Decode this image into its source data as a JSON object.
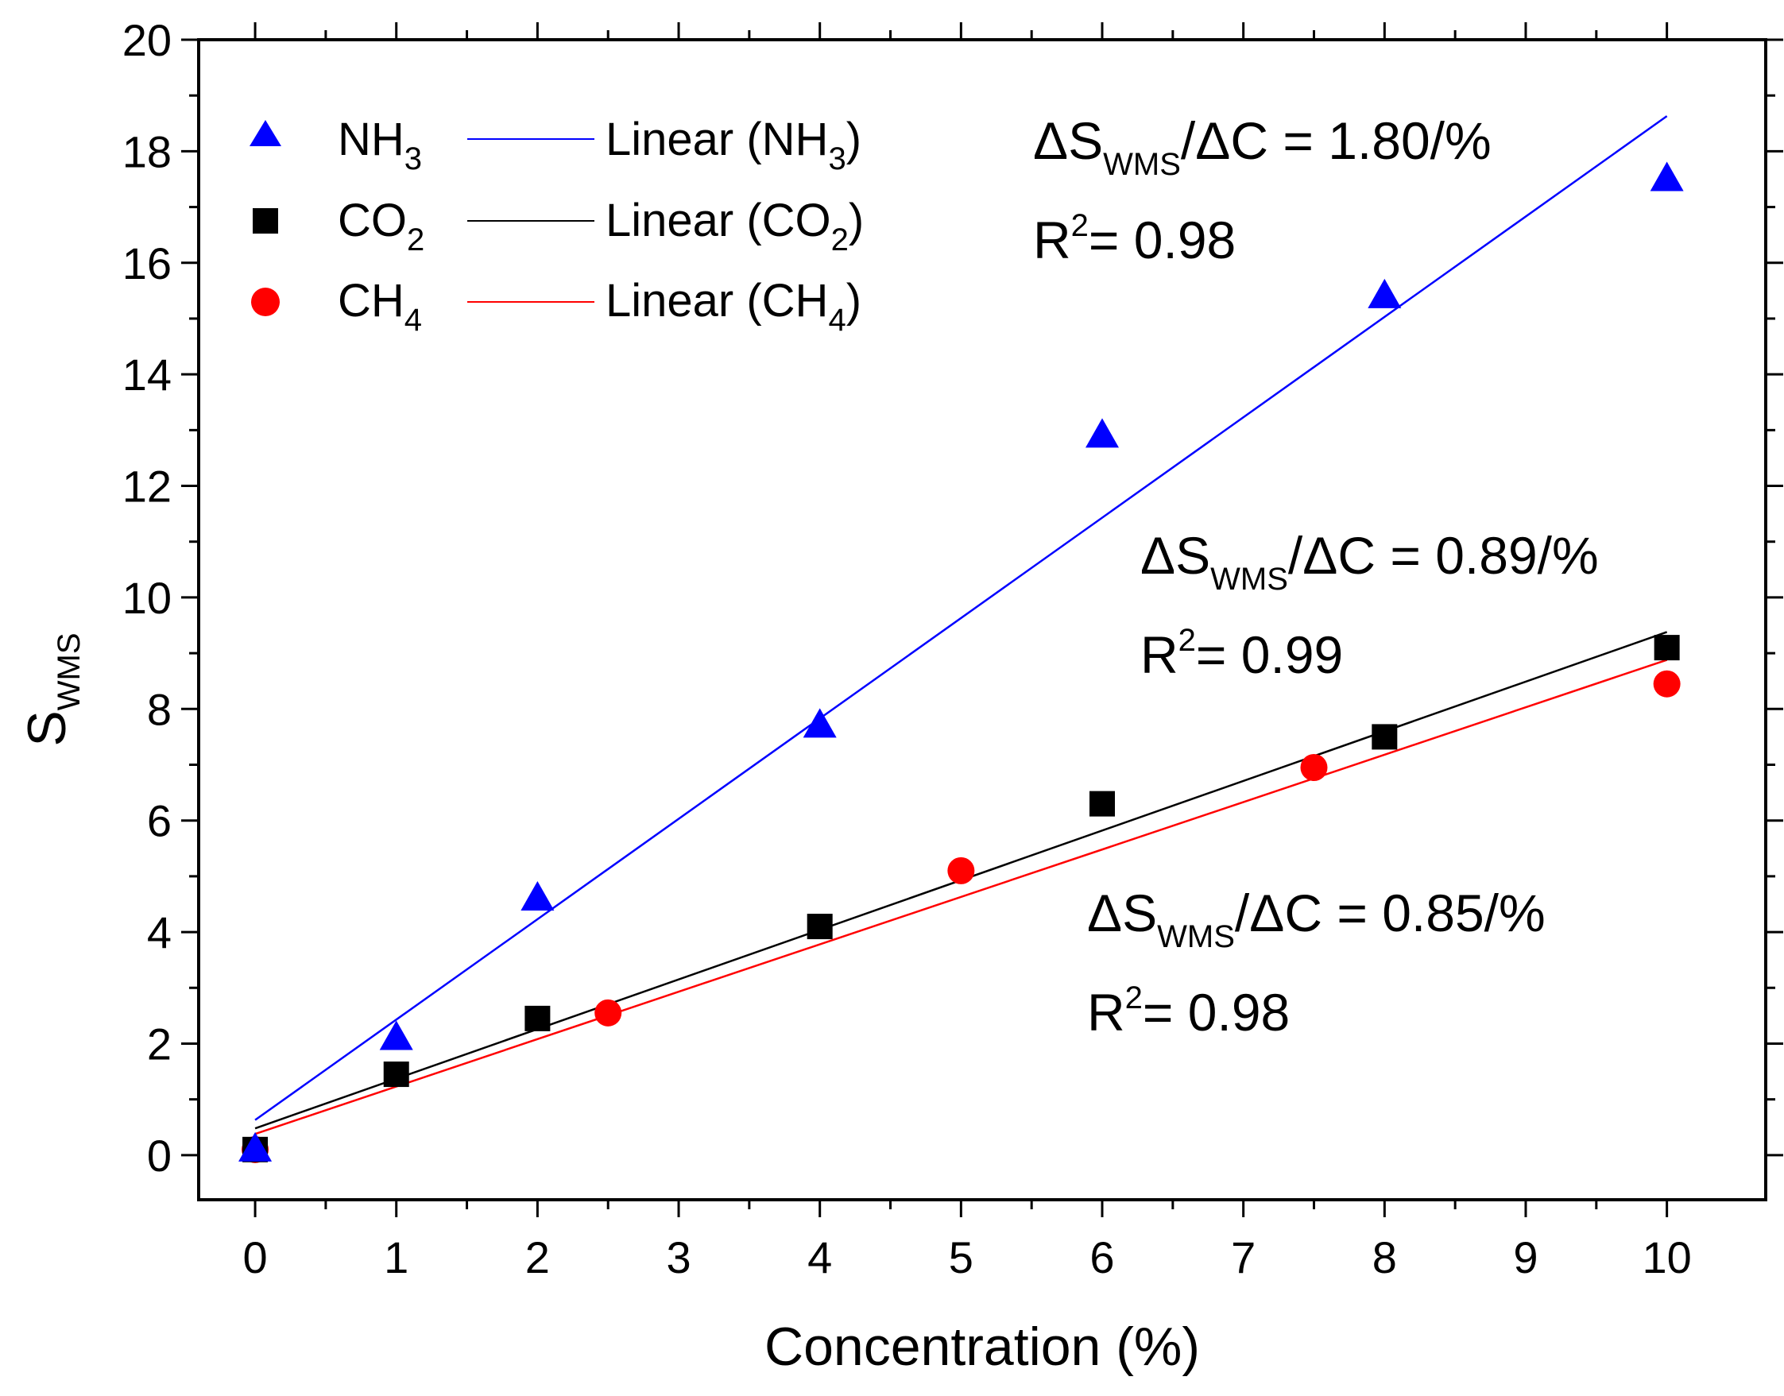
{
  "chart_data": {
    "type": "scatter",
    "title": "",
    "xlabel": "Concentration (%)",
    "ylabel": {
      "main": "S",
      "sub": "WMS"
    },
    "xlim": [
      -0.4,
      10.7
    ],
    "ylim": [
      -0.8,
      20
    ],
    "xticks": [
      0,
      1,
      2,
      3,
      4,
      5,
      6,
      7,
      8,
      9,
      10
    ],
    "yticks": [
      0,
      2,
      4,
      6,
      8,
      10,
      12,
      14,
      16,
      18,
      20
    ],
    "xtick_labels": [
      "0",
      "1",
      "2",
      "3",
      "4",
      "5",
      "6",
      "7",
      "8",
      "9",
      "10"
    ],
    "ytick_labels": [
      "0",
      "2",
      "4",
      "6",
      "8",
      "10",
      "12",
      "14",
      "16",
      "18",
      "20"
    ],
    "grid": false,
    "legend_position": "top-left",
    "series": [
      {
        "name": "NH3",
        "label_main": "NH",
        "label_sub": "3",
        "fit_label_main": "Linear (NH",
        "fit_label_sub": "3",
        "fit_label_end": ")",
        "marker": "triangle",
        "color": "#0000ff",
        "x": [
          0,
          1,
          2,
          4,
          6,
          8,
          10
        ],
        "y": [
          0.1,
          2.1,
          4.6,
          7.7,
          12.9,
          15.4,
          17.5
        ],
        "fit": {
          "slope": 1.8,
          "intercept": 0.63,
          "x_range": [
            0,
            10
          ]
        }
      },
      {
        "name": "CO2",
        "label_main": "CO",
        "label_sub": "2",
        "fit_label_main": "Linear (CO",
        "fit_label_sub": "2",
        "fit_label_end": ")",
        "marker": "square",
        "color": "#000000",
        "x": [
          0,
          1,
          2,
          4,
          6,
          8,
          10
        ],
        "y": [
          0.1,
          1.45,
          2.45,
          4.1,
          6.3,
          7.5,
          9.1
        ],
        "fit": {
          "slope": 0.89,
          "intercept": 0.48,
          "x_range": [
            0,
            10
          ]
        }
      },
      {
        "name": "CH4",
        "label_main": "CH",
        "label_sub": "4",
        "fit_label_main": "Linear (CH",
        "fit_label_sub": "4",
        "fit_label_end": ")",
        "marker": "circle",
        "color": "#ff0000",
        "x": [
          0,
          2.5,
          5,
          7.5,
          10
        ],
        "y": [
          0.1,
          2.55,
          5.1,
          6.95,
          8.45
        ],
        "fit": {
          "slope": 0.85,
          "intercept": 0.38,
          "x_range": [
            0,
            10
          ]
        }
      }
    ],
    "annotations": [
      {
        "series": "NH3",
        "delta": "Δ",
        "s": "S",
        "s_sub": "WMS",
        "rest": "/ΔC = 1.80/%",
        "r_main": "R",
        "r_sup": "2",
        "r_rest": "= 0.98"
      },
      {
        "series": "CO2",
        "delta": "Δ",
        "s": "S",
        "s_sub": "WMS",
        "rest": "/ΔC = 0.89/%",
        "r_main": "R",
        "r_sup": "2",
        "r_rest": "= 0.99"
      },
      {
        "series": "CH4",
        "delta": "Δ",
        "s": "S",
        "s_sub": "WMS",
        "rest": "/ΔC = 0.85/%",
        "r_main": "R",
        "r_sup": "2",
        "r_rest": "= 0.98"
      }
    ]
  }
}
